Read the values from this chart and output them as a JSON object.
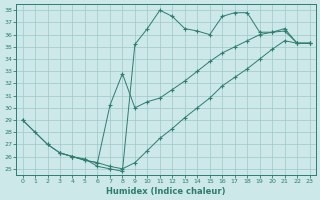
{
  "xlabel": "Humidex (Indice chaleur)",
  "bg_color": "#cce8e8",
  "grid_color": "#aacece",
  "line_color": "#2e7d6e",
  "xlim": [
    -0.5,
    23.5
  ],
  "ylim": [
    24.5,
    38.5
  ],
  "xticks": [
    0,
    1,
    2,
    3,
    4,
    5,
    6,
    7,
    8,
    9,
    10,
    11,
    12,
    13,
    14,
    15,
    16,
    17,
    18,
    19,
    20,
    21,
    22,
    23
  ],
  "yticks": [
    25,
    26,
    27,
    28,
    29,
    30,
    31,
    32,
    33,
    34,
    35,
    36,
    37,
    38
  ],
  "line1_x": [
    0,
    1,
    2,
    3,
    4,
    5,
    6,
    7,
    8,
    9,
    10,
    11,
    12,
    13,
    14,
    15,
    16,
    17,
    18,
    19,
    20,
    21,
    22,
    23
  ],
  "line1_y": [
    29.0,
    28.0,
    27.0,
    26.3,
    26.0,
    25.8,
    25.2,
    25.0,
    24.8,
    35.2,
    36.5,
    38.0,
    37.5,
    36.5,
    36.3,
    36.0,
    37.5,
    37.8,
    37.8,
    36.2,
    36.2,
    36.3,
    35.3,
    35.3
  ],
  "line2_x": [
    0,
    2,
    3,
    4,
    5,
    6,
    7,
    8,
    9,
    10,
    11,
    12,
    13,
    14,
    15,
    16,
    17,
    18,
    19,
    20,
    21,
    22,
    23
  ],
  "line2_y": [
    29.0,
    27.0,
    26.3,
    26.0,
    25.7,
    25.5,
    25.2,
    25.0,
    25.5,
    26.5,
    27.5,
    28.3,
    29.2,
    30.0,
    30.8,
    31.8,
    32.5,
    33.2,
    34.0,
    34.8,
    35.5,
    35.3,
    35.3
  ],
  "line3_x": [
    3,
    4,
    5,
    6,
    7,
    8,
    9,
    10,
    11,
    12,
    13,
    14,
    15,
    16,
    17,
    18,
    19,
    20,
    21,
    22,
    23
  ],
  "line3_y": [
    26.3,
    26.0,
    25.7,
    25.5,
    30.2,
    32.8,
    30.0,
    30.5,
    30.8,
    31.5,
    32.2,
    33.0,
    33.8,
    34.5,
    35.0,
    35.5,
    36.0,
    36.2,
    36.5,
    35.3,
    35.3
  ]
}
